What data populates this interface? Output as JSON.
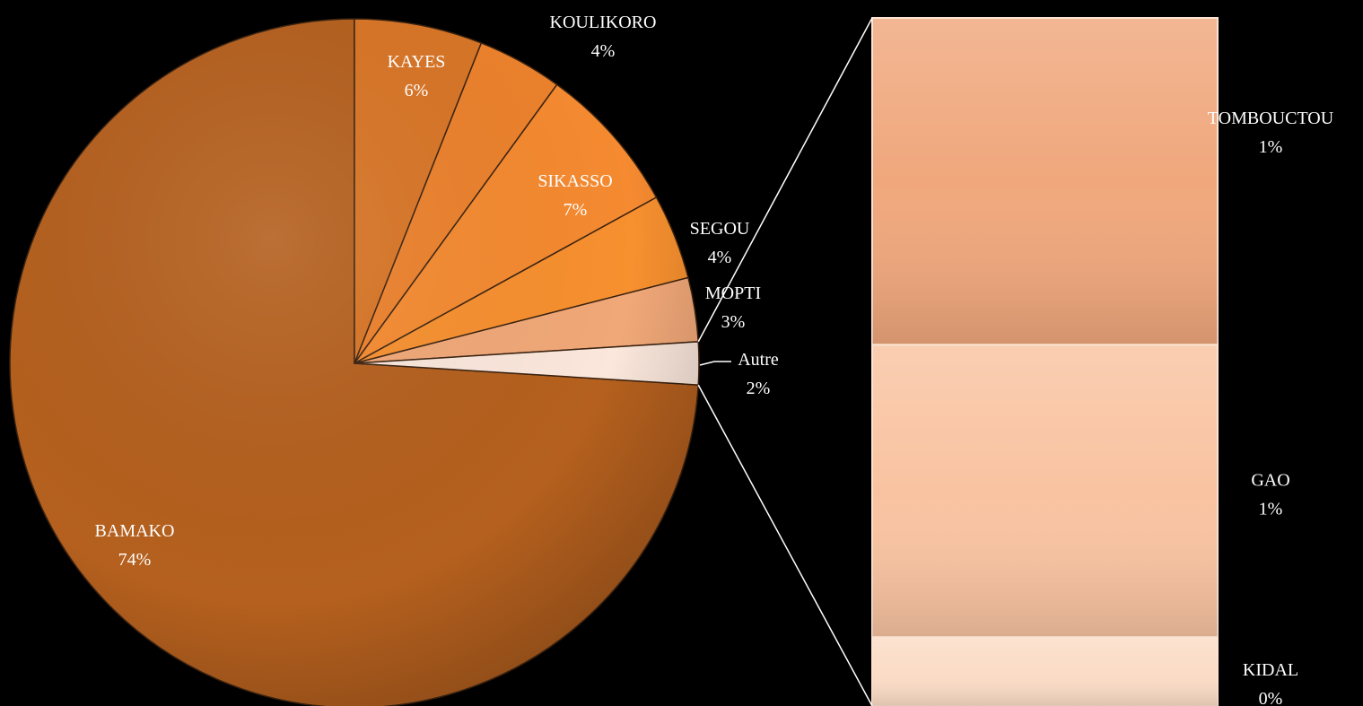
{
  "chart_data": {
    "type": "pie",
    "subtype": "bar-of-pie",
    "pie": {
      "slices": [
        {
          "name": "BAMAKO",
          "label": "74%",
          "value": 74,
          "color": "#b5601e"
        },
        {
          "name": "KAYES",
          "label": "6%",
          "value": 6,
          "color": "#d87526"
        },
        {
          "name": "KOULIKORO",
          "label": "4%",
          "value": 4,
          "color": "#ec812c"
        },
        {
          "name": "SIKASSO",
          "label": "7%",
          "value": 7,
          "color": "#f58a30"
        },
        {
          "name": "SEGOU",
          "label": "4%",
          "value": 4,
          "color": "#f7902f"
        },
        {
          "name": "MOPTI",
          "label": "3%",
          "value": 3,
          "color": "#f1a878"
        },
        {
          "name": "Autre",
          "label": "2%",
          "value": 2,
          "color": "#fbe7dc"
        }
      ]
    },
    "bar": {
      "segments": [
        {
          "name": "TOMBOUCTOU",
          "label": "1%",
          "value": 0.95,
          "color": "#f0a77c"
        },
        {
          "name": "GAO",
          "label": "1%",
          "value": 0.85,
          "color": "#f9c3a1"
        },
        {
          "name": "KIDAL",
          "label": "0%",
          "value": 0.2,
          "color": "#fbdcc6"
        }
      ]
    },
    "legend": "none"
  }
}
